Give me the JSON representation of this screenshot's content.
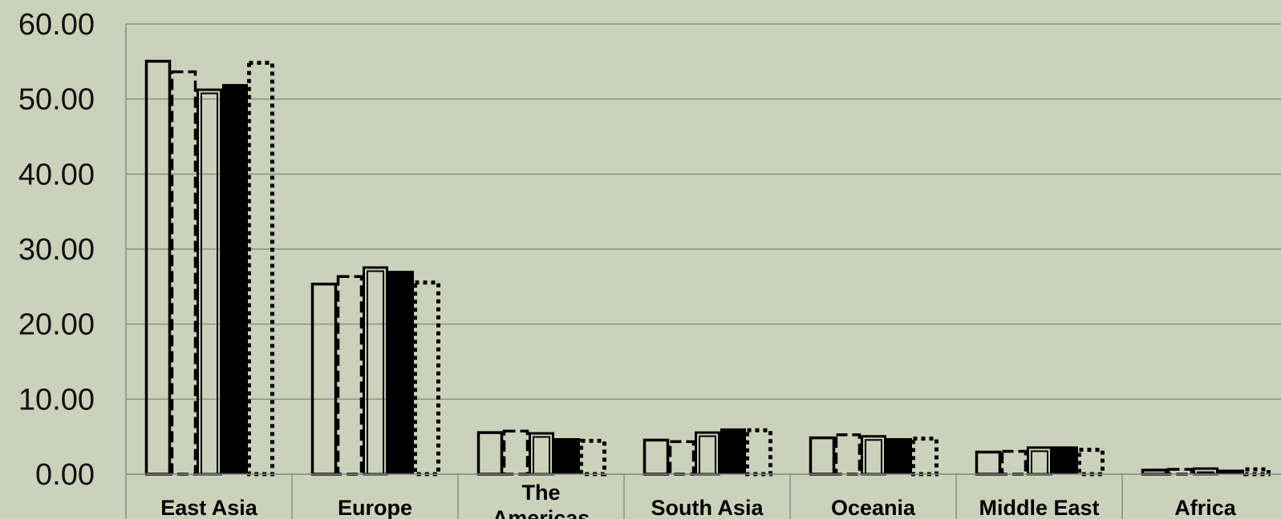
{
  "chart_data": {
    "type": "bar",
    "categories": [
      "East Asia",
      "Europe",
      "The Americas",
      "South Asia",
      "Oceania",
      "Middle East",
      "Africa"
    ],
    "series": [
      {
        "style": "solid-outline",
        "values": [
          55.2,
          25.5,
          5.7,
          4.7,
          5.0,
          3.1,
          0.7
        ]
      },
      {
        "style": "dashed-outline",
        "values": [
          53.8,
          26.5,
          5.9,
          4.5,
          5.4,
          3.2,
          0.8
        ]
      },
      {
        "style": "double-outline",
        "values": [
          51.4,
          27.7,
          5.6,
          5.7,
          5.2,
          3.7,
          0.9
        ]
      },
      {
        "style": "solid-fill",
        "values": [
          52.0,
          27.1,
          4.8,
          6.1,
          4.8,
          3.7,
          0.6
        ]
      },
      {
        "style": "dotted-outline",
        "values": [
          55.0,
          25.7,
          4.6,
          6.0,
          4.9,
          3.4,
          0.8
        ]
      }
    ],
    "ylim": [
      0,
      60
    ],
    "yticks": [
      "0.00",
      "10.00",
      "20.00",
      "30.00",
      "40.00",
      "50.00",
      "60.00"
    ],
    "grid": true,
    "colors": {
      "background": "#ccd1bb",
      "gridline": "#8a8f86",
      "bar": "#000000"
    }
  }
}
